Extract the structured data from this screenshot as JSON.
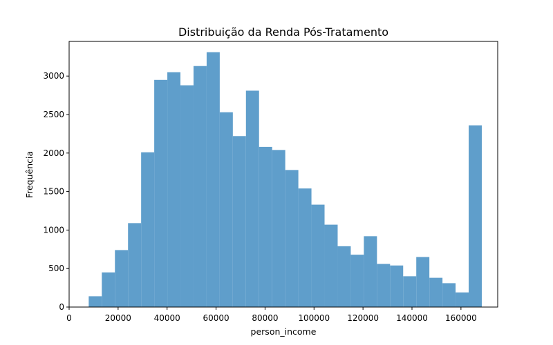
{
  "chart_data": {
    "type": "bar",
    "title": "Distribuição da Renda Pós-Tratamento",
    "xlabel": "person_income",
    "ylabel": "Frequência",
    "xlim": [
      0,
      175000
    ],
    "ylim": [
      0,
      3450
    ],
    "x_ticks": [
      0,
      20000,
      40000,
      60000,
      80000,
      100000,
      120000,
      140000,
      160000
    ],
    "y_ticks": [
      0,
      500,
      1000,
      1500,
      2000,
      2500,
      3000
    ],
    "bar_color": "#5f9ecb",
    "grid": false,
    "bins": {
      "start": 8000,
      "width": 5350,
      "counts": [
        140,
        450,
        740,
        1090,
        2010,
        2950,
        3050,
        2880,
        3130,
        3310,
        2530,
        2220,
        2810,
        2080,
        2040,
        1780,
        1540,
        1330,
        1070,
        790,
        680,
        920,
        560,
        540,
        400,
        650,
        380,
        310,
        190,
        2360
      ]
    }
  }
}
